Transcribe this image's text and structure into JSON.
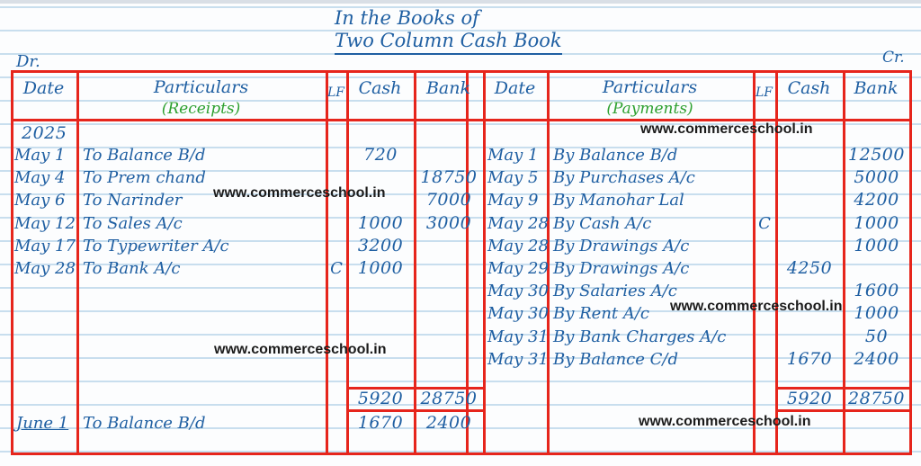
{
  "title": {
    "line1": "In the Books of",
    "line2": "Two Column Cash Book"
  },
  "labels": {
    "dr": "Dr.",
    "cr": "Cr."
  },
  "watermark": {
    "text": "www.commerceschool.in"
  },
  "colors": {
    "ink_blue": "#1f5fa2",
    "heading_green": "#2da02f",
    "grid_red": "#e6251c",
    "watermark_black": "#1b1b1b",
    "ruled_line_blue": "#c8deee",
    "paper": "#fcfdfe"
  },
  "headers": {
    "date": "Date",
    "particulars": "Particulars",
    "receipts": "(Receipts)",
    "payments": "(Payments)",
    "lf": "LF",
    "cash": "Cash",
    "bank": "Bank"
  },
  "debit": {
    "year": "2025",
    "rows": [
      {
        "date": "May 1",
        "particulars": "To Balance B/d",
        "lf": "",
        "cash": "720",
        "bank": ""
      },
      {
        "date": "May 4",
        "particulars": "To Prem chand",
        "lf": "",
        "cash": "",
        "bank": "18750"
      },
      {
        "date": "May 6",
        "particulars": "To Narinder",
        "lf": "",
        "cash": "",
        "bank": "7000"
      },
      {
        "date": "May 12",
        "particulars": "To Sales A/c",
        "lf": "",
        "cash": "1000",
        "bank": "3000"
      },
      {
        "date": "May 17",
        "particulars": "To Typewriter A/c",
        "lf": "",
        "cash": "3200",
        "bank": ""
      },
      {
        "date": "May 28",
        "particulars": "To Bank A/c",
        "lf": "C",
        "cash": "1000",
        "bank": ""
      }
    ],
    "total": {
      "cash": "5920",
      "bank": "28750"
    },
    "balance_row": {
      "date": "June 1",
      "particulars": "To Balance B/d",
      "cash": "1670",
      "bank": "2400"
    }
  },
  "credit": {
    "rows": [
      {
        "date": "May 1",
        "particulars": "By Balance B/d",
        "lf": "",
        "cash": "",
        "bank": "12500"
      },
      {
        "date": "May 5",
        "particulars": "By Purchases A/c",
        "lf": "",
        "cash": "",
        "bank": "5000"
      },
      {
        "date": "May 9",
        "particulars": "By Manohar Lal",
        "lf": "",
        "cash": "",
        "bank": "4200"
      },
      {
        "date": "May 28",
        "particulars": "By Cash A/c",
        "lf": "C",
        "cash": "",
        "bank": "1000"
      },
      {
        "date": "May 28",
        "particulars": "By Drawings A/c",
        "lf": "",
        "cash": "",
        "bank": "1000"
      },
      {
        "date": "May 29",
        "particulars": "By Drawings A/c",
        "lf": "",
        "cash": "4250",
        "bank": ""
      },
      {
        "date": "May 30",
        "particulars": "By Salaries A/c",
        "lf": "",
        "cash": "",
        "bank": "1600"
      },
      {
        "date": "May 30",
        "particulars": "By Rent A/c",
        "lf": "",
        "cash": "",
        "bank": "1000"
      },
      {
        "date": "May 31",
        "particulars": "By Bank Charges A/c",
        "lf": "",
        "cash": "",
        "bank": "50"
      },
      {
        "date": "May 31",
        "particulars": "By Balance C/d",
        "lf": "",
        "cash": "1670",
        "bank": "2400"
      }
    ],
    "total": {
      "cash": "5920",
      "bank": "28750"
    }
  }
}
